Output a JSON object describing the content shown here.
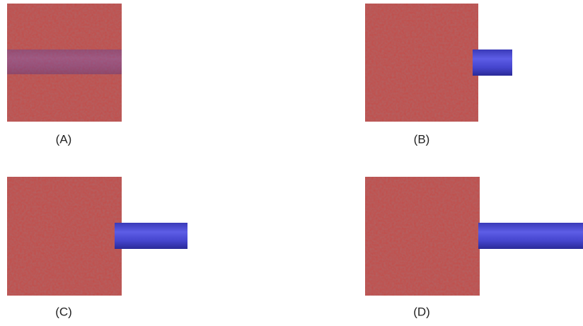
{
  "panels": [
    {
      "label": "(A)"
    },
    {
      "label": "(B)"
    },
    {
      "label": "(C)"
    },
    {
      "label": "(D)"
    }
  ]
}
